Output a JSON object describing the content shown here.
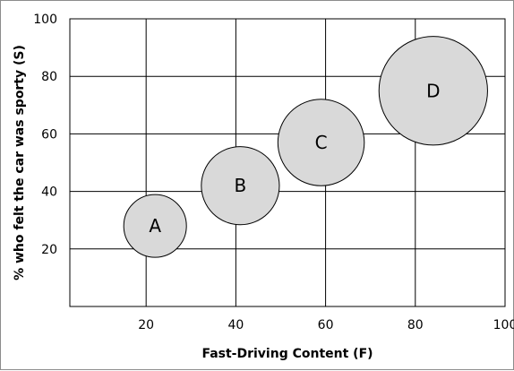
{
  "chart_data": {
    "type": "bubble",
    "xlabel": "Fast-Driving Content (F)",
    "ylabel": "% who felt the car was sporty (S)",
    "xlim": [
      3,
      100
    ],
    "ylim": [
      0,
      100
    ],
    "x_ticks": [
      20,
      40,
      60,
      80,
      100
    ],
    "y_ticks": [
      20,
      40,
      60,
      80,
      100
    ],
    "grid": true,
    "bubble_color": "#d9d9d9",
    "points": [
      {
        "label": "A",
        "x": 22,
        "y": 28,
        "size": 1.0
      },
      {
        "label": "B",
        "x": 41,
        "y": 42,
        "size": 1.55
      },
      {
        "label": "C",
        "x": 59,
        "y": 57,
        "size": 1.9
      },
      {
        "label": "D",
        "x": 84,
        "y": 75,
        "size": 3.0
      }
    ]
  }
}
